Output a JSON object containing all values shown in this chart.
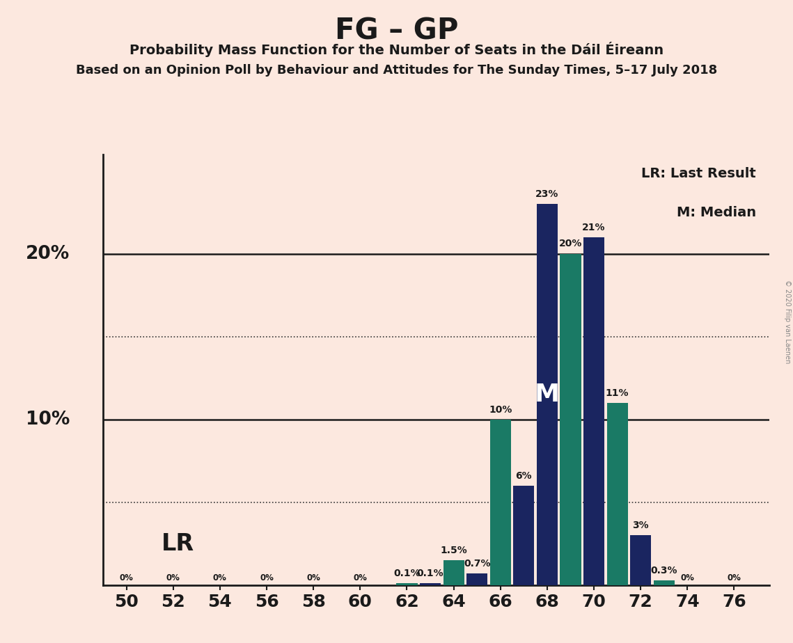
{
  "title": "FG – GP",
  "subtitle1": "Probability Mass Function for the Number of Seats in the Dáil Éireann",
  "subtitle2": "Based on an Opinion Poll by Behaviour and Attitudes for The Sunday Times, 5–17 July 2018",
  "copyright": "© 2020 Filip van Laenen",
  "background_color": "#fce8df",
  "bar_color_teal": "#1a7a65",
  "bar_color_navy": "#1a2560",
  "x_ticks": [
    50,
    52,
    54,
    56,
    58,
    60,
    62,
    64,
    66,
    68,
    70,
    72,
    74,
    76
  ],
  "seats": [
    50,
    51,
    52,
    53,
    54,
    55,
    56,
    57,
    58,
    59,
    60,
    61,
    62,
    63,
    64,
    65,
    66,
    67,
    68,
    69,
    70,
    71,
    72,
    73,
    74,
    75,
    76
  ],
  "teal_values": [
    0,
    0,
    0,
    0,
    0,
    0,
    0,
    0,
    0,
    0,
    0,
    0,
    0.1,
    0,
    1.5,
    0,
    10,
    0,
    0,
    20,
    0,
    11,
    0,
    0.3,
    0,
    0,
    0
  ],
  "navy_values": [
    0,
    0,
    0,
    0,
    0,
    0,
    0,
    0,
    0,
    0,
    0,
    0,
    0,
    0.1,
    0,
    0.7,
    0,
    6,
    23,
    0,
    21,
    0,
    3,
    0,
    0,
    0,
    0
  ],
  "teal_bar_labels": {
    "62": "0.1%",
    "64": "1.5%",
    "66": "10%",
    "69": "20%",
    "71": "11%",
    "73": "0.3%"
  },
  "navy_bar_labels": {
    "63": "0.1%",
    "65": "0.7%",
    "67": "6%",
    "68": "23%",
    "70": "21%",
    "72": "3%"
  },
  "solid_hlines": [
    10,
    20
  ],
  "dotted_hlines": [
    5,
    15
  ],
  "legend_lr": "LR: Last Result",
  "legend_m": "M: Median",
  "lr_text": "LR",
  "m_text": "M",
  "median_seat": 68,
  "ylim_top": 26,
  "ytick_labels": [
    "10%",
    "20%"
  ],
  "ytick_positions": [
    10,
    20
  ]
}
